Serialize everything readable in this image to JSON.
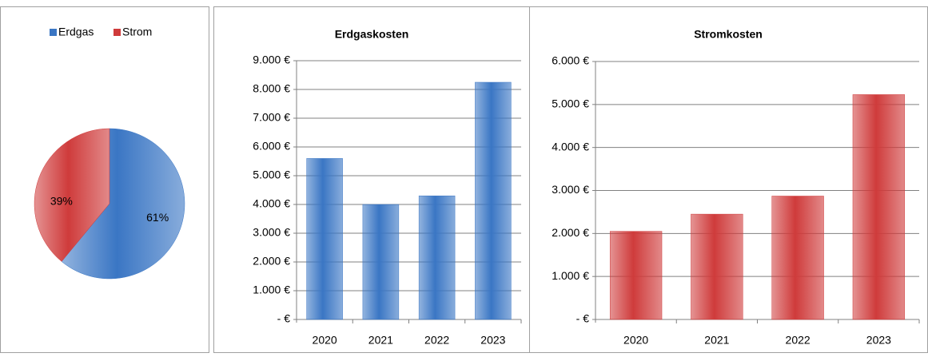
{
  "chart_data": [
    {
      "type": "pie",
      "categories": [
        "Erdgas",
        "Strom"
      ],
      "values": [
        61,
        39
      ],
      "value_labels": [
        "61%",
        "39%"
      ],
      "colors": [
        "#3a76c4",
        "#cf3b3b"
      ],
      "legend": "top"
    },
    {
      "type": "bar",
      "title": "Erdgaskosten",
      "categories": [
        "2020",
        "2021",
        "2022",
        "2023"
      ],
      "values": [
        5600,
        4000,
        4300,
        8250
      ],
      "color": "#3a76c4",
      "ylim": [
        0,
        9000
      ],
      "yticks": [
        {
          "value": 0,
          "label": "-   €"
        },
        {
          "value": 1000,
          "label": "1.000 €"
        },
        {
          "value": 2000,
          "label": "2.000 €"
        },
        {
          "value": 3000,
          "label": "3.000 €"
        },
        {
          "value": 4000,
          "label": "4.000 €"
        },
        {
          "value": 5000,
          "label": "5.000 €"
        },
        {
          "value": 6000,
          "label": "6.000 €"
        },
        {
          "value": 7000,
          "label": "7.000 €"
        },
        {
          "value": 8000,
          "label": "8.000 €"
        },
        {
          "value": 9000,
          "label": "9.000 €"
        }
      ],
      "grid": true
    },
    {
      "type": "bar",
      "title": "Stromkosten",
      "categories": [
        "2020",
        "2021",
        "2022",
        "2023"
      ],
      "values": [
        2050,
        2450,
        2870,
        5230
      ],
      "color": "#cf3b3b",
      "ylim": [
        0,
        6000
      ],
      "yticks": [
        {
          "value": 0,
          "label": "-   €"
        },
        {
          "value": 1000,
          "label": "1.000 €"
        },
        {
          "value": 2000,
          "label": "2.000 €"
        },
        {
          "value": 3000,
          "label": "3.000 €"
        },
        {
          "value": 4000,
          "label": "4.000 €"
        },
        {
          "value": 5000,
          "label": "5.000 €"
        },
        {
          "value": 6000,
          "label": "6.000 €"
        }
      ],
      "grid": true
    }
  ]
}
